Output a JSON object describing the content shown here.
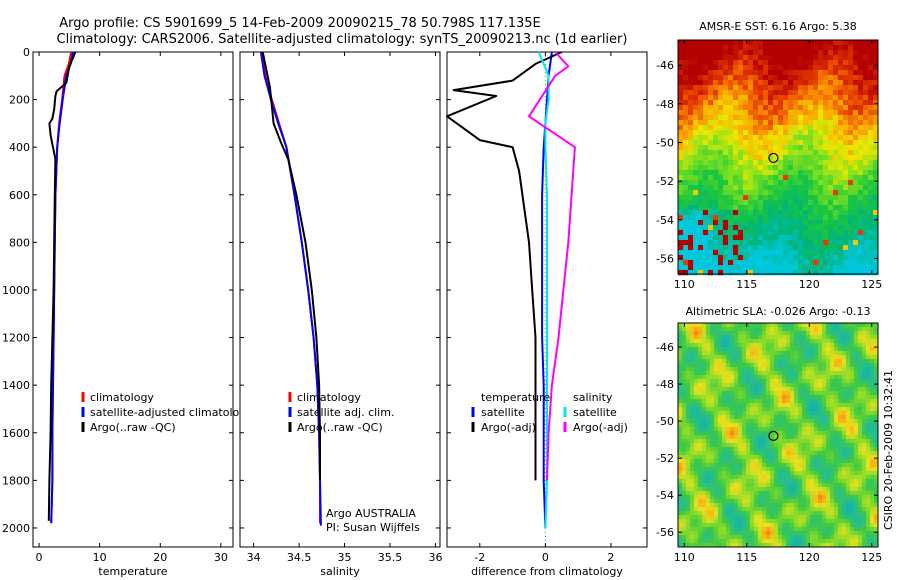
{
  "header": {
    "line1": "Argo profile: CS 5901699_5 14-Feb-2009 20090215_78 50.798S 117.135E",
    "line2": "Climatology: CARS2006. Satellite-adjusted climatology: synTS_20090213.nc (1d earlier)"
  },
  "side_label": "CSIRO 20-Feb-2009 10:32:41",
  "colors": {
    "red": "#ff0000",
    "blue": "#0000ff",
    "black": "#000000",
    "cyan": "#00e5ee",
    "magenta": "#ff00ff"
  },
  "chart_data": [
    {
      "id": "temperature",
      "type": "line",
      "xlabel": "temperature",
      "ylabel": "",
      "xlim": [
        -1,
        32
      ],
      "ylim": [
        2080,
        0
      ],
      "xticks": [
        0,
        10,
        20,
        30
      ],
      "yticks": [
        0,
        200,
        400,
        600,
        800,
        1000,
        1200,
        1400,
        1600,
        1800,
        2000
      ],
      "legend": {
        "position": "lower-right",
        "entries": [
          "climatology",
          "satellite-adjusted climatology",
          "Argo(..raw -QC)"
        ]
      },
      "series": [
        {
          "name": "climatology",
          "color": "red",
          "x": [
            5.3,
            4.9,
            4.2,
            3.8,
            3.3,
            3.0,
            2.7,
            2.6,
            2.5,
            2.4,
            2.3,
            2.2,
            2.2,
            2.0
          ],
          "y": [
            0,
            50,
            100,
            200,
            300,
            400,
            600,
            800,
            1000,
            1200,
            1400,
            1600,
            1800,
            1980
          ]
        },
        {
          "name": "satellite-adjusted climatology",
          "color": "blue",
          "x": [
            5.6,
            5.2,
            4.5,
            3.9,
            3.4,
            3.0,
            2.7,
            2.6,
            2.5,
            2.4,
            2.3,
            2.2,
            2.2,
            2.0
          ],
          "y": [
            0,
            50,
            100,
            200,
            300,
            400,
            600,
            800,
            1000,
            1200,
            1400,
            1600,
            1800,
            1980
          ]
        },
        {
          "name": "Argo(..raw -QC)",
          "color": "black",
          "x": [
            6.0,
            5.0,
            4.5,
            2.9,
            2.7,
            2.5,
            2.2,
            1.7,
            1.9,
            2.7,
            2.6,
            2.5,
            2.4,
            2.2,
            2.0,
            1.9,
            1.7,
            1.6
          ],
          "y": [
            0,
            60,
            130,
            165,
            185,
            240,
            280,
            300,
            350,
            450,
            600,
            800,
            1000,
            1200,
            1400,
            1600,
            1800,
            1970
          ]
        }
      ]
    },
    {
      "id": "salinity",
      "type": "line",
      "xlabel": "salinity",
      "ylabel": "",
      "xlim": [
        33.85,
        36.05
      ],
      "ylim": [
        2080,
        0
      ],
      "xticks": [
        34,
        34.5,
        35,
        35.5,
        36
      ],
      "yticks": [
        0,
        200,
        400,
        600,
        800,
        1000,
        1200,
        1400,
        1600,
        1800,
        2000
      ],
      "legend": {
        "position": "lower-right",
        "entries": [
          "climatology",
          "satellite adj. clim.",
          "Argo(..raw -QC)"
        ]
      },
      "annotations": [
        "Argo AUSTRALIA",
        "PI: Susan Wijffels"
      ],
      "series": [
        {
          "name": "climatology",
          "color": "red",
          "x": [
            34.1,
            34.13,
            34.2,
            34.28,
            34.36,
            34.45,
            34.53,
            34.6,
            34.66,
            34.7,
            34.72,
            34.73,
            34.73
          ],
          "y": [
            0,
            100,
            200,
            300,
            400,
            600,
            800,
            1000,
            1200,
            1400,
            1600,
            1800,
            1980
          ]
        },
        {
          "name": "satellite adj. clim.",
          "color": "blue",
          "x": [
            34.08,
            34.12,
            34.19,
            34.27,
            34.36,
            34.45,
            34.53,
            34.6,
            34.66,
            34.7,
            34.72,
            34.73,
            34.74
          ],
          "y": [
            0,
            100,
            200,
            300,
            400,
            600,
            800,
            1000,
            1200,
            1400,
            1600,
            1800,
            1990
          ]
        },
        {
          "name": "Argo(..raw -QC)",
          "color": "black",
          "x": [
            34.1,
            34.18,
            34.22,
            34.3,
            34.38,
            34.47,
            34.57,
            34.64,
            34.69,
            34.72,
            34.73,
            34.73
          ],
          "y": [
            0,
            150,
            300,
            380,
            450,
            600,
            800,
            1000,
            1200,
            1400,
            1600,
            1800
          ]
        }
      ]
    },
    {
      "id": "difference",
      "type": "line",
      "xlabel": "difference from climatology",
      "ylabel": "",
      "xlim": [
        -3,
        3.1
      ],
      "ylim": [
        2080,
        0
      ],
      "xticks": [
        -2,
        0,
        2
      ],
      "yticks": [
        0,
        200,
        400,
        600,
        800,
        1000,
        1200,
        1400,
        1600,
        1800,
        2000
      ],
      "legend": {
        "position": "lower-center",
        "groups": [
          {
            "title": "temperature",
            "entries": [
              "satellite",
              "Argo(-adj)"
            ]
          },
          {
            "title": "salinity",
            "entries": [
              "satellite",
              "Argo(-adj)"
            ]
          }
        ]
      },
      "series": [
        {
          "name": "temperature satellite",
          "color": "blue",
          "x": [
            0.2,
            0.1,
            0.05,
            0.0,
            -0.05,
            -0.1,
            -0.1,
            -0.1,
            -0.1,
            -0.05,
            -0.05,
            -0.05,
            0.0
          ],
          "y": [
            0,
            100,
            200,
            300,
            400,
            600,
            800,
            1000,
            1200,
            1400,
            1600,
            1800,
            2000
          ]
        },
        {
          "name": "temperature Argo(-adj)",
          "color": "black",
          "x": [
            0.5,
            -0.3,
            -1.0,
            -2.8,
            -1.5,
            -3.0,
            -2.5,
            -2.0,
            -1.0,
            -0.8,
            -0.5,
            -0.4,
            -0.3,
            -0.3,
            -0.3,
            -0.3
          ],
          "y": [
            0,
            50,
            120,
            160,
            185,
            270,
            320,
            370,
            400,
            500,
            800,
            1000,
            1200,
            1400,
            1600,
            1800
          ]
        },
        {
          "name": "salinity satellite",
          "color": "cyan",
          "x": [
            -0.2,
            0.1,
            0.1,
            0.0,
            0.0,
            0.05,
            0.05,
            0.05,
            0.05,
            0.05,
            0.05,
            0.05,
            0.0
          ],
          "y": [
            0,
            100,
            200,
            300,
            400,
            600,
            800,
            1000,
            1200,
            1400,
            1600,
            1800,
            2000
          ]
        },
        {
          "name": "salinity Argo(-adj)",
          "color": "magenta",
          "x": [
            0.3,
            0.7,
            0.3,
            -0.5,
            0.9,
            0.8,
            0.7,
            0.55,
            0.4,
            0.2,
            0.1,
            0.05
          ],
          "y": [
            0,
            60,
            100,
            270,
            400,
            600,
            800,
            1000,
            1200,
            1400,
            1600,
            1800
          ]
        }
      ]
    },
    {
      "id": "sst-map",
      "type": "heatmap",
      "title": "AMSR-E SST: 6.16 Argo: 5.38",
      "xlim": [
        109.5,
        125.5
      ],
      "ylim": [
        -56.8,
        -44.7
      ],
      "xticks": [
        110,
        115,
        120,
        125
      ],
      "yticks": [
        -46,
        -48,
        -50,
        -52,
        -54,
        -56
      ],
      "marker": {
        "lon": 117.135,
        "lat": -50.798
      }
    },
    {
      "id": "sla-map",
      "type": "heatmap",
      "title": "Altimetric SLA: -0.026 Argo: -0.13",
      "xlim": [
        109.5,
        125.5
      ],
      "ylim": [
        -56.8,
        -44.7
      ],
      "xticks": [
        110,
        115,
        120,
        125
      ],
      "yticks": [
        -46,
        -48,
        -50,
        -52,
        -54,
        -56
      ],
      "marker": {
        "lon": 117.135,
        "lat": -50.798
      }
    }
  ]
}
